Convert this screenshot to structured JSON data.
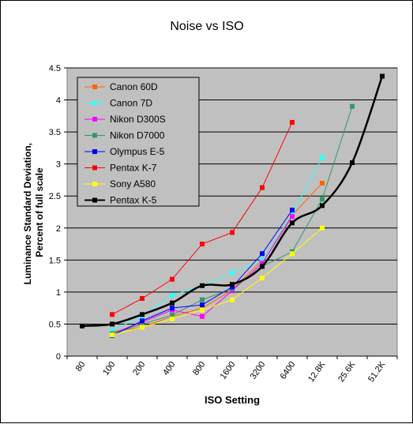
{
  "chart_data": {
    "type": "line",
    "title": "Noise vs ISO",
    "xlabel": "ISO Setting",
    "ylabel": [
      "Luminance Standard Deviation,",
      "Percent of full scale"
    ],
    "categories": [
      "80",
      "100",
      "200",
      "400",
      "800",
      "1600",
      "3200",
      "6400",
      "12.8K",
      "25.6K",
      "51.2K"
    ],
    "yticks": [
      "0",
      "0.5",
      "1",
      "1.5",
      "2",
      "2.5",
      "3",
      "3.5",
      "4",
      "4.5"
    ],
    "ylim": [
      0,
      4.5
    ],
    "grid": "horizontal",
    "legend_position": "top-left",
    "plot_background": "#c0c0c0",
    "series": [
      {
        "name": "Canon 60D",
        "color": "#ff6600",
        "marker": "square",
        "smooth": false,
        "points": [
          [
            1,
            0.38
          ],
          [
            2,
            0.45
          ],
          [
            3,
            0.62
          ],
          [
            4,
            0.75
          ],
          [
            5,
            1.03
          ],
          [
            6,
            1.5
          ],
          [
            7,
            2.2
          ],
          [
            8,
            2.7
          ]
        ]
      },
      {
        "name": "Canon 7D",
        "color": "#33ffff",
        "marker": "square",
        "smooth": false,
        "points": [
          [
            1,
            0.4
          ],
          [
            2,
            0.62
          ],
          [
            3,
            0.95
          ],
          [
            4,
            1.1
          ],
          [
            5,
            1.3
          ],
          [
            6,
            1.5
          ],
          [
            7,
            2.22
          ],
          [
            8,
            3.1
          ]
        ]
      },
      {
        "name": "Nikon D300S",
        "color": "#ff00ff",
        "marker": "square",
        "smooth": false,
        "points": [
          [
            1,
            0.35
          ],
          [
            2,
            0.53
          ],
          [
            3,
            0.72
          ],
          [
            4,
            0.62
          ],
          [
            5,
            1.02
          ],
          [
            6,
            1.45
          ],
          [
            7,
            2.18
          ]
        ]
      },
      {
        "name": "Nikon D7000",
        "color": "#339966",
        "marker": "square",
        "smooth": false,
        "points": [
          [
            1,
            0.35
          ],
          [
            2,
            0.5
          ],
          [
            3,
            0.64
          ],
          [
            4,
            0.88
          ],
          [
            5,
            1.05
          ],
          [
            6,
            1.4
          ],
          [
            7,
            1.63
          ],
          [
            8,
            2.45
          ],
          [
            9,
            3.9
          ]
        ]
      },
      {
        "name": "Olympus E-5",
        "color": "#0000ff",
        "marker": "square",
        "smooth": false,
        "points": [
          [
            1,
            0.32
          ],
          [
            2,
            0.55
          ],
          [
            3,
            0.75
          ],
          [
            4,
            0.8
          ],
          [
            5,
            1.08
          ],
          [
            6,
            1.6
          ],
          [
            7,
            2.28
          ]
        ]
      },
      {
        "name": "Pentax K-7",
        "color": "#ff0000",
        "marker": "square",
        "smooth": false,
        "points": [
          [
            1,
            0.65
          ],
          [
            2,
            0.9
          ],
          [
            3,
            1.2
          ],
          [
            4,
            1.75
          ],
          [
            5,
            1.93
          ],
          [
            6,
            2.63
          ],
          [
            7,
            3.65
          ]
        ]
      },
      {
        "name": "Sony A580",
        "color": "#ffff00",
        "marker": "square",
        "smooth": false,
        "points": [
          [
            1,
            0.33
          ],
          [
            2,
            0.45
          ],
          [
            3,
            0.58
          ],
          [
            4,
            0.72
          ],
          [
            5,
            0.88
          ],
          [
            6,
            1.22
          ],
          [
            7,
            1.6
          ],
          [
            8,
            2.0
          ]
        ]
      },
      {
        "name": "Pentax K-5",
        "color": "#000000",
        "marker": "square",
        "smooth": true,
        "width": 2.5,
        "points": [
          [
            0,
            0.47
          ],
          [
            1,
            0.5
          ],
          [
            2,
            0.65
          ],
          [
            3,
            0.83
          ],
          [
            4,
            1.1
          ],
          [
            5,
            1.12
          ],
          [
            6,
            1.4
          ],
          [
            7,
            2.08
          ],
          [
            8,
            2.35
          ],
          [
            9,
            3.02
          ],
          [
            10,
            4.37
          ]
        ]
      }
    ]
  }
}
